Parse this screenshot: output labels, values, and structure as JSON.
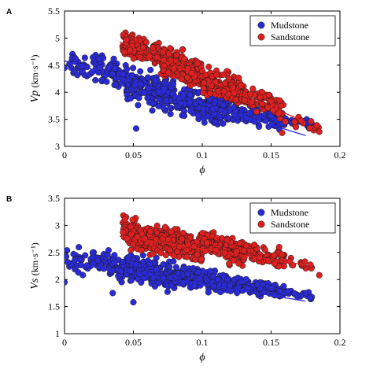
{
  "chart_data": [
    {
      "panel_label": "A",
      "type": "scatter",
      "xlabel": "ϕ",
      "ylabel_symbol": "Vp",
      "ylabel_unit": "(km·s⁻¹)",
      "xlim": [
        0,
        0.2
      ],
      "ylim": [
        3,
        5.5
      ],
      "xticks": [
        0,
        0.05,
        0.1,
        0.15,
        0.2
      ],
      "xtick_labels": [
        "0",
        "0.05",
        "0.1",
        "0.15",
        "0.2"
      ],
      "yticks": [
        3,
        3.5,
        4,
        4.5,
        5,
        5.5
      ],
      "ytick_labels": [
        "3",
        "3.5",
        "4",
        "4.5",
        "5",
        "5.5"
      ],
      "legend": {
        "placement": "top-right",
        "entries": [
          "Mudstone",
          "Sandstone"
        ]
      },
      "grid": false,
      "series": [
        {
          "name": "Mudstone",
          "color": "#2b2bd6",
          "points_note": "dense cloud",
          "trend_line": {
            "x": [
              0,
              0.175
            ],
            "y": [
              4.58,
              3.2
            ]
          },
          "x_range": [
            0,
            0.18
          ],
          "clusters": [
            {
              "x": [
                0.002,
                0.02
              ],
              "y": [
                4.15,
                4.75
              ],
              "n": 30
            },
            {
              "x": [
                0.02,
                0.045
              ],
              "y": [
                4.05,
                4.75
              ],
              "n": 70
            },
            {
              "x": [
                0.045,
                0.08
              ],
              "y": [
                3.6,
                4.5
              ],
              "n": 180
            },
            {
              "x": [
                0.08,
                0.12
              ],
              "y": [
                3.4,
                4.1
              ],
              "n": 200
            },
            {
              "x": [
                0.12,
                0.16
              ],
              "y": [
                3.3,
                3.8
              ],
              "n": 120
            },
            {
              "x": [
                0.16,
                0.18
              ],
              "y": [
                3.3,
                3.55
              ],
              "n": 20
            }
          ],
          "outliers": [
            {
              "x": 0.052,
              "y": 3.33
            },
            {
              "x": 0.0,
              "y": 4.45
            },
            {
              "x": 0.008,
              "y": 4.62
            }
          ]
        },
        {
          "name": "Sandstone",
          "color": "#dd2020",
          "trend_line": {
            "x": [
              0.04,
              0.175
            ],
            "y": [
              4.93,
              3.45
            ]
          },
          "x_range": [
            0.04,
            0.185
          ],
          "clusters": [
            {
              "x": [
                0.042,
                0.07
              ],
              "y": [
                4.45,
                5.1
              ],
              "n": 150
            },
            {
              "x": [
                0.07,
                0.1
              ],
              "y": [
                4.05,
                4.85
              ],
              "n": 200
            },
            {
              "x": [
                0.1,
                0.13
              ],
              "y": [
                3.75,
                4.5
              ],
              "n": 150
            },
            {
              "x": [
                0.13,
                0.16
              ],
              "y": [
                3.5,
                4.1
              ],
              "n": 80
            },
            {
              "x": [
                0.16,
                0.185
              ],
              "y": [
                3.25,
                3.6
              ],
              "n": 15
            }
          ],
          "outliers": [
            {
              "x": 0.185,
              "y": 3.27
            },
            {
              "x": 0.158,
              "y": 3.25
            }
          ]
        }
      ]
    },
    {
      "panel_label": "B",
      "type": "scatter",
      "xlabel": "ϕ",
      "ylabel_symbol": "Vs",
      "ylabel_unit": "(km·s⁻¹)",
      "xlim": [
        0,
        0.2
      ],
      "ylim": [
        1,
        3.5
      ],
      "xticks": [
        0,
        0.05,
        0.1,
        0.15,
        0.2
      ],
      "xtick_labels": [
        "0",
        "0.05",
        "0.1",
        "0.15",
        "0.2"
      ],
      "yticks": [
        1,
        1.5,
        2,
        2.5,
        3,
        3.5
      ],
      "ytick_labels": [
        "1",
        "1.5",
        "2",
        "2.5",
        "3",
        "3.5"
      ],
      "legend": {
        "placement": "top-right",
        "entries": [
          "Mudstone",
          "Sandstone"
        ]
      },
      "grid": false,
      "series": [
        {
          "name": "Mudstone",
          "color": "#2b2bd6",
          "trend_line": {
            "x": [
              0,
              0.175
            ],
            "y": [
              2.33,
              1.6
            ]
          },
          "x_range": [
            0,
            0.18
          ],
          "clusters": [
            {
              "x": [
                0.0,
                0.02
              ],
              "y": [
                1.95,
                2.7
              ],
              "n": 30
            },
            {
              "x": [
                0.02,
                0.045
              ],
              "y": [
                1.95,
                2.6
              ],
              "n": 70
            },
            {
              "x": [
                0.045,
                0.08
              ],
              "y": [
                1.8,
                2.5
              ],
              "n": 180
            },
            {
              "x": [
                0.08,
                0.12
              ],
              "y": [
                1.75,
                2.25
              ],
              "n": 200
            },
            {
              "x": [
                0.12,
                0.16
              ],
              "y": [
                1.65,
                2.05
              ],
              "n": 120
            },
            {
              "x": [
                0.16,
                0.18
              ],
              "y": [
                1.6,
                1.85
              ],
              "n": 20
            }
          ],
          "outliers": [
            {
              "x": 0.035,
              "y": 1.75
            },
            {
              "x": 0.0,
              "y": 1.95
            },
            {
              "x": 0.05,
              "y": 1.58
            }
          ]
        },
        {
          "name": "Sandstone",
          "color": "#dd2020",
          "trend_line": {
            "x": [
              0.04,
              0.175
            ],
            "y": [
              2.8,
              2.27
            ]
          },
          "x_range": [
            0.04,
            0.185
          ],
          "clusters": [
            {
              "x": [
                0.042,
                0.07
              ],
              "y": [
                2.4,
                3.15
              ],
              "n": 150
            },
            {
              "x": [
                0.07,
                0.1
              ],
              "y": [
                2.3,
                3.0
              ],
              "n": 200
            },
            {
              "x": [
                0.1,
                0.13
              ],
              "y": [
                2.25,
                2.95
              ],
              "n": 150
            },
            {
              "x": [
                0.13,
                0.16
              ],
              "y": [
                2.2,
                2.7
              ],
              "n": 80
            },
            {
              "x": [
                0.16,
                0.185
              ],
              "y": [
                2.05,
                2.45
              ],
              "n": 15
            }
          ],
          "outliers": [
            {
              "x": 0.185,
              "y": 2.08
            }
          ]
        }
      ]
    }
  ]
}
